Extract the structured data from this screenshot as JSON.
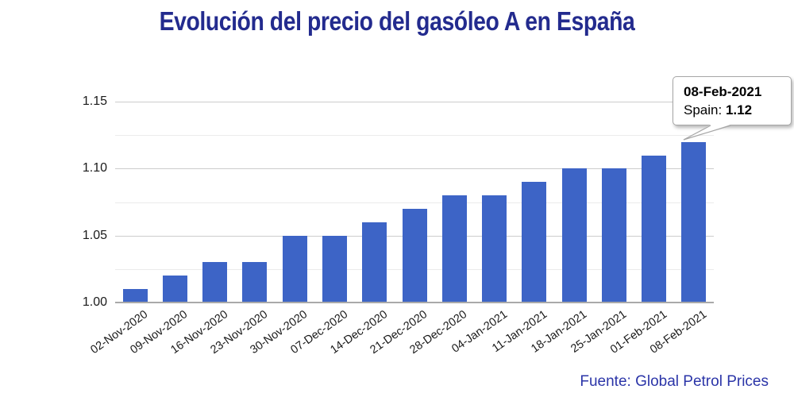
{
  "chart_data": {
    "type": "bar",
    "title": "Evolución del precio del gasóleo A en España",
    "categories": [
      "02-Nov-2020",
      "09-Nov-2020",
      "16-Nov-2020",
      "23-Nov-2020",
      "30-Nov-2020",
      "07-Dec-2020",
      "14-Dec-2020",
      "21-Dec-2020",
      "28-Dec-2020",
      "04-Jan-2021",
      "11-Jan-2021",
      "18-Jan-2021",
      "25-Jan-2021",
      "01-Feb-2021",
      "08-Feb-2021"
    ],
    "series": [
      {
        "name": "Spain",
        "values": [
          1.01,
          1.02,
          1.03,
          1.03,
          1.05,
          1.05,
          1.06,
          1.07,
          1.08,
          1.08,
          1.09,
          1.1,
          1.1,
          1.11,
          1.12
        ]
      }
    ],
    "xlabel": "",
    "ylabel": "",
    "ylim": [
      1.0,
      1.15
    ],
    "ytick_labels": [
      "1.15",
      "1.10",
      "1.05",
      "1.00"
    ],
    "ytick_values": [
      1.15,
      1.1,
      1.05,
      1.0
    ],
    "minor_grid_step": 0.025,
    "grid": true,
    "legend": "none",
    "bar_color": "#3D64C6"
  },
  "tooltip": {
    "date": "08-Feb-2021",
    "series_label": "Spain:",
    "value": "1.12",
    "target_index": 14
  },
  "footer": {
    "source_label": "Fuente: Global Petrol Prices"
  },
  "colors": {
    "title": "#232B8E",
    "bar": "#3D64C6",
    "grid_major": "#cccccc",
    "grid_minor": "#ebebeb",
    "axis_line": "#a9a9a9",
    "axis_text": "#1a1a1a",
    "footer_text": "#2B35A8",
    "tooltip_border": "#a6a6a6"
  }
}
